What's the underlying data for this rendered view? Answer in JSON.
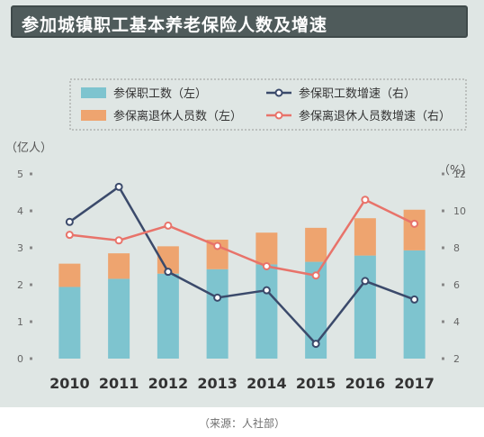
{
  "title": "参加城镇职工基本养老保险人数及增速",
  "source": "（来源：人社部）",
  "chart_data": {
    "type": "bar",
    "stacked": true,
    "categories": [
      "2010",
      "2011",
      "2012",
      "2013",
      "2014",
      "2015",
      "2016",
      "2017"
    ],
    "left_axis": {
      "unit": "（亿人）",
      "ylim": [
        0,
        5
      ],
      "ticks": [
        0,
        1,
        2,
        3,
        4,
        5
      ]
    },
    "right_axis": {
      "unit": "（%）",
      "ylim": [
        2,
        12
      ],
      "ticks": [
        2,
        4,
        6,
        8,
        10,
        12
      ]
    },
    "series": [
      {
        "name": "参保职工数（左）",
        "kind": "bar",
        "axis": "left",
        "color": "#7ec4cf",
        "values": [
          1.94,
          2.16,
          2.3,
          2.42,
          2.55,
          2.62,
          2.79,
          2.93
        ]
      },
      {
        "name": "参保离退休人员数（左）",
        "kind": "bar",
        "axis": "left",
        "color": "#eea46f",
        "values": [
          0.63,
          0.69,
          0.74,
          0.8,
          0.86,
          0.92,
          1.01,
          1.1
        ]
      },
      {
        "name": "参保职工数增速（右）",
        "kind": "line",
        "axis": "right",
        "color": "#3b4a6b",
        "values": [
          9.4,
          11.3,
          6.7,
          5.3,
          5.7,
          2.8,
          6.2,
          5.2
        ]
      },
      {
        "name": "参保离退休人员数增速（右）",
        "kind": "line",
        "axis": "right",
        "color": "#e8736a",
        "values": [
          8.7,
          8.4,
          9.2,
          8.1,
          7.0,
          6.5,
          10.6,
          9.3
        ]
      }
    ],
    "grid": false,
    "legend_position": "top"
  }
}
